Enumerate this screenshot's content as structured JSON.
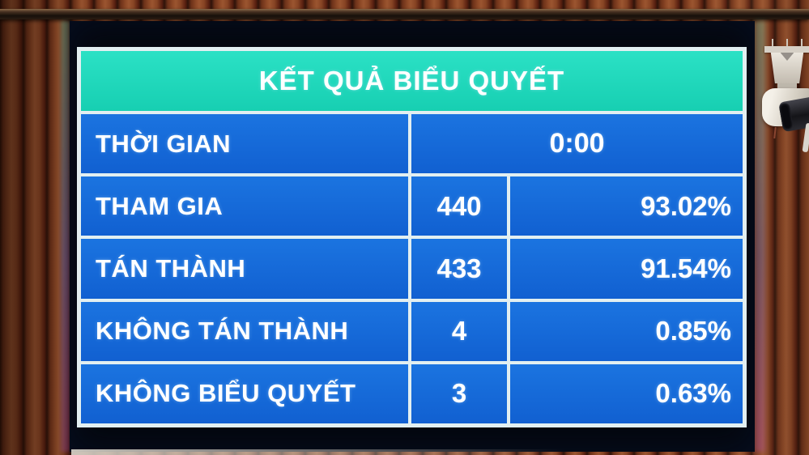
{
  "display": {
    "title": "KẾT QUẢ BIỂU QUYẾT",
    "time_row": {
      "label": "THỜI GIAN",
      "value": "0:00"
    },
    "rows": [
      {
        "label": "THAM GIA",
        "count": "440",
        "percent": "93.02%"
      },
      {
        "label": "TÁN THÀNH",
        "count": "433",
        "percent": "91.54%"
      },
      {
        "label": "KHÔNG TÁN THÀNH",
        "count": "4",
        "percent": "0.85%"
      },
      {
        "label": "KHÔNG BIỂU QUYẾT",
        "count": "3",
        "percent": "0.63%"
      }
    ],
    "colors": {
      "header_bg": "#1ed6ba",
      "cell_bg": "#1668d9",
      "grid_lines": "#e2eff1",
      "text": "#ffffff",
      "screen_bg": "#04070e"
    }
  },
  "scene": {
    "wall": "wooden-slat-wall",
    "wall_color": "#7e3d20",
    "rail": "metal-wall-rail",
    "camera": "security-camera"
  }
}
